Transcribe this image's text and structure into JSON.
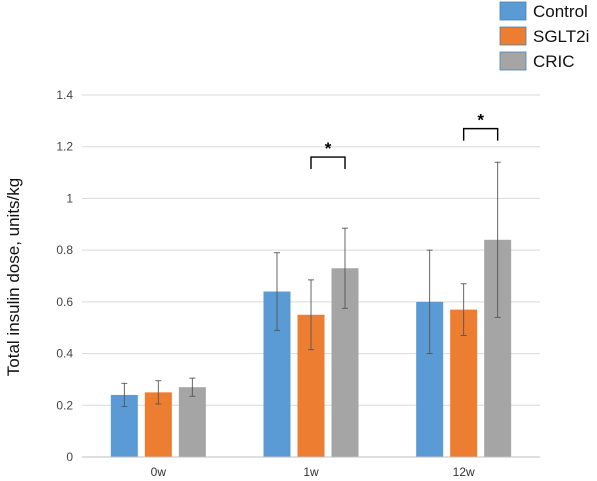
{
  "chart_data": {
    "type": "bar",
    "title": "",
    "xlabel": "",
    "ylabel": "Total insulin dose, units/kg",
    "ylim": [
      0,
      1.4
    ],
    "yticks": [
      "0",
      "0.2",
      "0.4",
      "0.6",
      "0.8",
      "1",
      "1.2",
      "1.4"
    ],
    "categories": [
      "0w",
      "1w",
      "12w"
    ],
    "grid": true,
    "legend_position": "top-right",
    "series": [
      {
        "name": "Control",
        "color": "#5b9bd5",
        "values": [
          0.24,
          0.64,
          0.6
        ],
        "error": [
          0.045,
          0.15,
          0.2
        ]
      },
      {
        "name": "SGLT2i",
        "color": "#ed7d31",
        "values": [
          0.25,
          0.55,
          0.57
        ],
        "error": [
          0.045,
          0.135,
          0.1
        ]
      },
      {
        "name": "CRIC",
        "color": "#a5a5a5",
        "values": [
          0.27,
          0.73,
          0.84
        ],
        "error": [
          0.035,
          0.155,
          0.3
        ]
      }
    ],
    "annotations": [
      {
        "category": 1,
        "text": "*",
        "from_series": 1,
        "to_series": 2,
        "y": 1.16
      },
      {
        "category": 2,
        "text": "*",
        "from_series": 1,
        "to_series": 2,
        "y": 1.27
      }
    ]
  }
}
